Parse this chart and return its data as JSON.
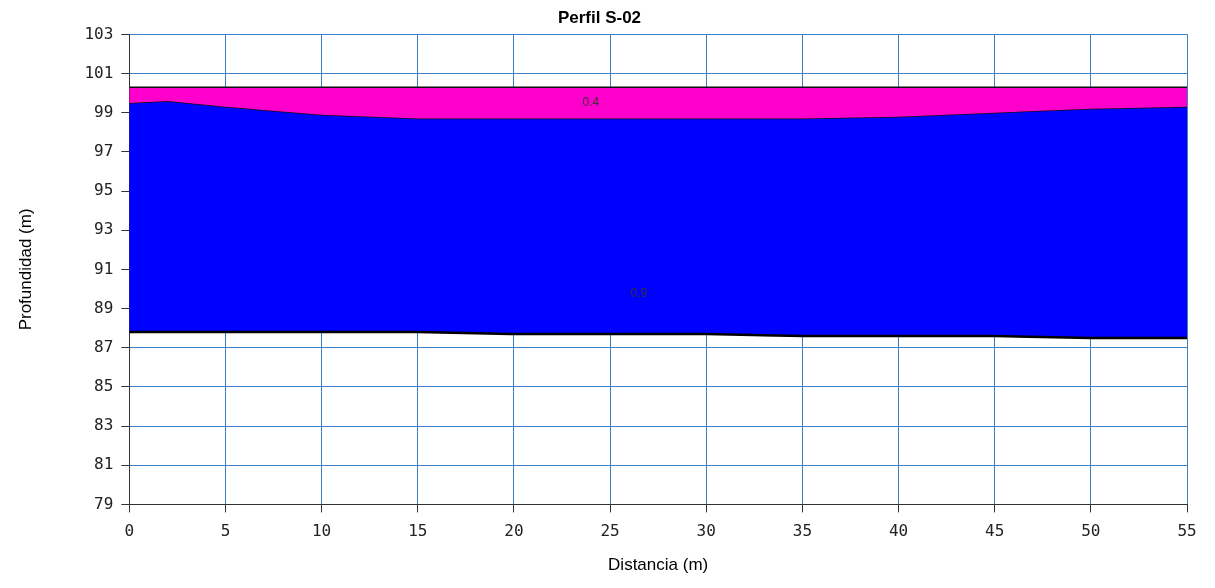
{
  "chart_data": {
    "type": "area",
    "title": "Perfil S-02",
    "xlabel": "Distancia (m)",
    "ylabel": "Profundidad (m)",
    "x": [
      0,
      2,
      5,
      10,
      15,
      20,
      25,
      30,
      35,
      40,
      45,
      50,
      55
    ],
    "series": [
      {
        "color": "#ff00cc",
        "values": [
          100.3,
          100.3,
          100.3,
          100.3,
          100.3,
          100.3,
          100.3,
          100.3,
          100.3,
          100.3,
          100.3,
          100.3,
          100.3
        ]
      },
      {
        "color": "#0000ff",
        "values": [
          99.5,
          99.6,
          99.3,
          98.9,
          98.7,
          98.7,
          98.7,
          98.7,
          98.7,
          98.8,
          99.0,
          99.2,
          99.3
        ]
      },
      {
        "type": "line",
        "color": "#000000",
        "values": [
          87.8,
          87.8,
          87.8,
          87.8,
          87.8,
          87.7,
          87.7,
          87.7,
          87.6,
          87.6,
          87.6,
          87.5,
          87.5
        ]
      }
    ],
    "xlim": [
      0,
      55
    ],
    "xticks": [
      0,
      5,
      10,
      15,
      20,
      25,
      30,
      35,
      40,
      45,
      50,
      55
    ],
    "ylim": [
      79,
      103
    ],
    "yticks": [
      79,
      81,
      83,
      85,
      87,
      89,
      91,
      93,
      95,
      97,
      99,
      101,
      103
    ],
    "grid": true,
    "marker": "none",
    "line_style": "solid",
    "legend": false,
    "annotations": [
      "0.4",
      "0.9"
    ]
  }
}
